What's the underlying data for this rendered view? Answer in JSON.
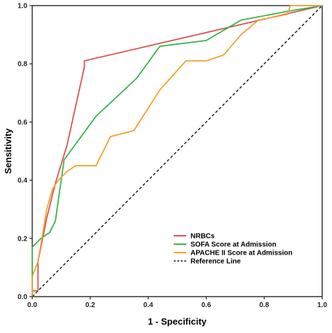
{
  "chart_data": {
    "type": "line",
    "title": "",
    "xlabel": "1 - Specificity",
    "ylabel": "Sensitivity",
    "xlim": [
      0,
      1
    ],
    "ylim": [
      0,
      1
    ],
    "xticks": [
      "0.0",
      "0.2",
      "0.4",
      "0.6",
      "0.8",
      "1.0"
    ],
    "yticks": [
      "0.0",
      "0.2",
      "0.4",
      "0.6",
      "0.8",
      "1.0"
    ],
    "grid": false,
    "legend_position": "bottom-right",
    "series": [
      {
        "name": "NRBCs",
        "color": "#d9534f",
        "dash": false,
        "points": [
          [
            0,
            0
          ],
          [
            0,
            0.02
          ],
          [
            0.02,
            0.02
          ],
          [
            0.02,
            0.12
          ],
          [
            0.05,
            0.27
          ],
          [
            0.08,
            0.39
          ],
          [
            0.12,
            0.52
          ],
          [
            0.18,
            0.79
          ],
          [
            0.18,
            0.81
          ],
          [
            1,
            1
          ]
        ]
      },
      {
        "name": "SOFA Score  at Admission",
        "color": "#3bb34a",
        "dash": false,
        "points": [
          [
            0,
            0
          ],
          [
            0,
            0.17
          ],
          [
            0.03,
            0.2
          ],
          [
            0.06,
            0.22
          ],
          [
            0.08,
            0.26
          ],
          [
            0.11,
            0.47
          ],
          [
            0.22,
            0.62
          ],
          [
            0.36,
            0.75
          ],
          [
            0.44,
            0.86
          ],
          [
            0.6,
            0.88
          ],
          [
            0.72,
            0.95
          ],
          [
            0.88,
            0.98
          ],
          [
            1,
            1
          ]
        ]
      },
      {
        "name": "APACHE II Score at Admission",
        "color": "#f0a22e",
        "dash": false,
        "points": [
          [
            0,
            0
          ],
          [
            0,
            0.07
          ],
          [
            0.02,
            0.12
          ],
          [
            0.05,
            0.3
          ],
          [
            0.07,
            0.37
          ],
          [
            0.09,
            0.4
          ],
          [
            0.12,
            0.43
          ],
          [
            0.15,
            0.45
          ],
          [
            0.18,
            0.45
          ],
          [
            0.22,
            0.45
          ],
          [
            0.27,
            0.55
          ],
          [
            0.35,
            0.57
          ],
          [
            0.44,
            0.71
          ],
          [
            0.53,
            0.81
          ],
          [
            0.6,
            0.81
          ],
          [
            0.66,
            0.83
          ],
          [
            0.72,
            0.9
          ],
          [
            0.78,
            0.95
          ],
          [
            0.88,
            0.97
          ],
          [
            0.89,
            1
          ],
          [
            1,
            1
          ]
        ]
      },
      {
        "name": "Reference Line",
        "color": "#000000",
        "dash": true,
        "points": [
          [
            0,
            0
          ],
          [
            1,
            1
          ]
        ]
      }
    ]
  }
}
